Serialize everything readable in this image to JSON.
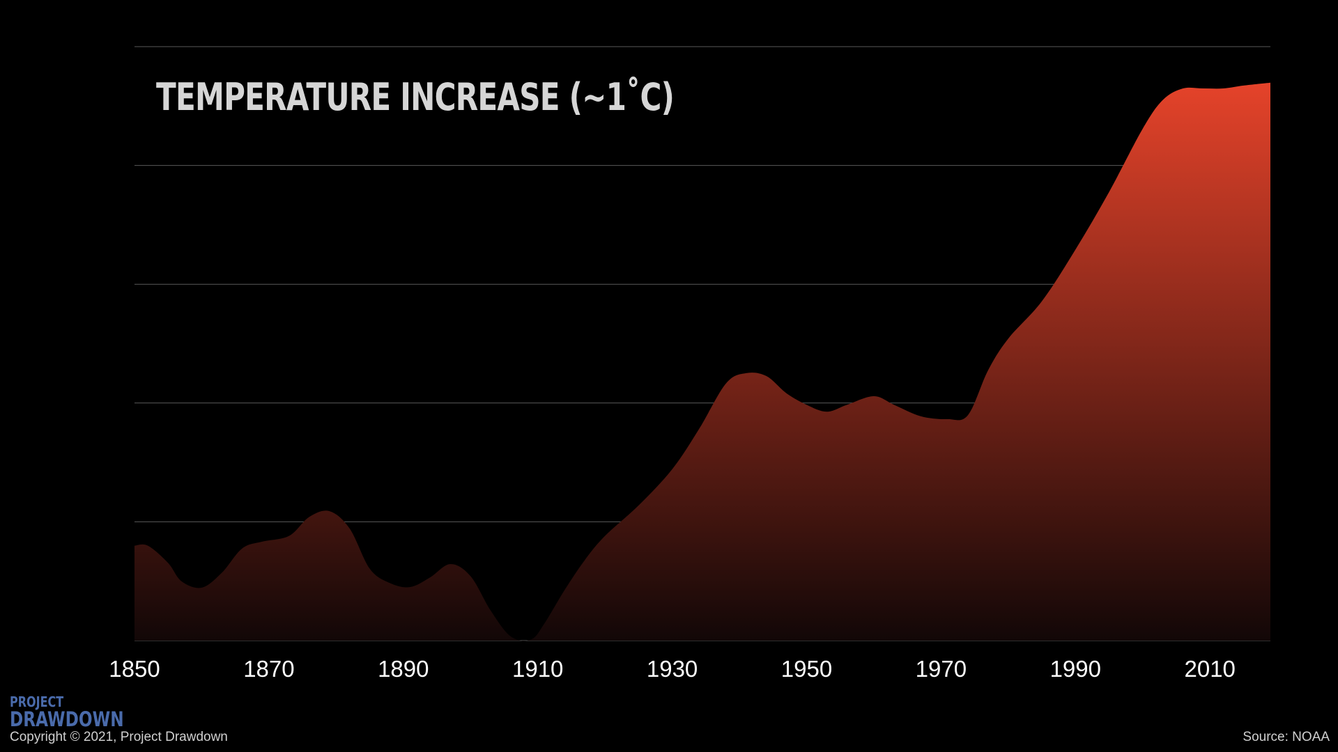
{
  "colors": {
    "background": "#000000",
    "area_top": "#e5432a",
    "area_bottom": "#120707",
    "gridline": "#5a5a5a",
    "text": "#ffffff",
    "title": "#d6d6d6",
    "logo": "#4a6bab"
  },
  "logo": {
    "line1": "PROJECT",
    "line2": "DRAWDOWN"
  },
  "footer": {
    "copyright": "Copyright © 2021, Project Drawdown",
    "source": "Source: NOAA"
  },
  "chart_data": {
    "type": "area",
    "title": "TEMPERATURE INCREASE (~1˚C)",
    "xlabel": "",
    "ylabel": "",
    "grid": true,
    "legend": "none",
    "xlim": [
      1850,
      2019
    ],
    "ylim": [
      0,
      1
    ],
    "x_ticks": [
      "1850",
      "1870",
      "1890",
      "1910",
      "1930",
      "1950",
      "1970",
      "1990",
      "2010"
    ],
    "x": [
      1850,
      1852,
      1855,
      1857,
      1860,
      1863,
      1866,
      1869,
      1873,
      1876,
      1879,
      1882,
      1885,
      1888,
      1891,
      1894,
      1897,
      1900,
      1903,
      1906,
      1909,
      1911,
      1914,
      1917,
      1920,
      1925,
      1930,
      1934,
      1938,
      1941,
      1944,
      1947,
      1950,
      1953,
      1956,
      1960,
      1963,
      1967,
      1971,
      1974,
      1977,
      1980,
      1985,
      1990,
      1995,
      2000,
      2003,
      2006,
      2009,
      2012,
      2015,
      2019
    ],
    "y": [
      0.165,
      0.165,
      0.135,
      0.103,
      0.092,
      0.118,
      0.16,
      0.172,
      0.182,
      0.215,
      0.225,
      0.195,
      0.125,
      0.1,
      0.093,
      0.11,
      0.133,
      0.112,
      0.052,
      0.007,
      0.002,
      0.03,
      0.088,
      0.14,
      0.182,
      0.235,
      0.298,
      0.368,
      0.447,
      0.465,
      0.46,
      0.43,
      0.41,
      0.398,
      0.41,
      0.425,
      0.41,
      0.39,
      0.385,
      0.392,
      0.47,
      0.525,
      0.59,
      0.68,
      0.78,
      0.89,
      0.94,
      0.96,
      0.96,
      0.96,
      0.965,
      0.97
    ]
  }
}
